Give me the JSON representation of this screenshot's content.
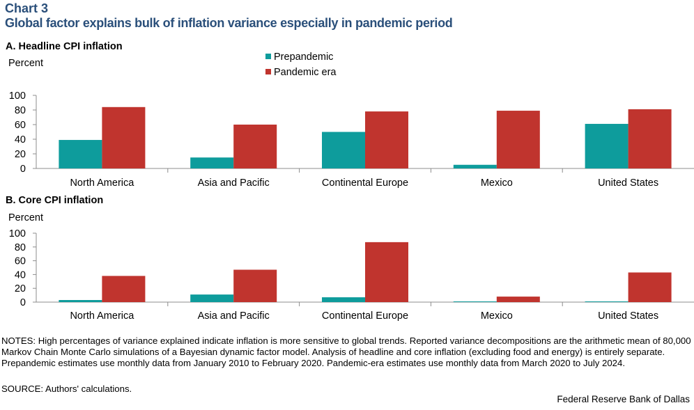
{
  "chart_label": "Chart 3",
  "title": "Global factor explains bulk of inflation variance especially in pandemic period",
  "colors": {
    "prepandemic": "#0e9c9c",
    "pandemic": "#c0342e",
    "title": "#2a4f7a",
    "axis": "#8c8c8c"
  },
  "chart_data": [
    {
      "type": "bar",
      "panel_title": "A. Headline CPI inflation",
      "ylabel": "Percent",
      "ylim": [
        0,
        100
      ],
      "yticks": [
        0,
        20,
        40,
        60,
        80,
        100
      ],
      "categories": [
        "North America",
        "Asia and Pacific",
        "Continental Europe",
        "Mexico",
        "United States"
      ],
      "series": [
        {
          "name": "Prepandemic",
          "values": [
            39,
            15,
            50,
            5,
            61
          ]
        },
        {
          "name": "Pandemic era",
          "values": [
            84,
            60,
            78,
            79,
            81
          ]
        }
      ],
      "legend": "top-center"
    },
    {
      "type": "bar",
      "panel_title": "B. Core CPI inflation",
      "ylabel": "Percent",
      "ylim": [
        0,
        100
      ],
      "yticks": [
        0,
        20,
        40,
        60,
        80,
        100
      ],
      "categories": [
        "North America",
        "Asia and Pacific",
        "Continental Europe",
        "Mexico",
        "United States"
      ],
      "series": [
        {
          "name": "Prepandemic",
          "values": [
            3,
            11,
            7,
            1,
            1
          ]
        },
        {
          "name": "Pandemic era",
          "values": [
            38,
            47,
            87,
            8,
            43
          ]
        }
      ]
    }
  ],
  "notes": "NOTES: High percentages of variance explained indicate inflation is more sensitive to global trends. Reported variance decompositions are the arithmetic mean of 80,000 Markov Chain Monte Carlo simulations of a Bayesian dynamic factor model. Analysis of headline and core inflation (excluding food and energy) is entirely separate. Prepandemic estimates use monthly data from January 2010 to February 2020. Pandemic-era estimates use monthly data from March 2020 to July 2024.",
  "source": "SOURCE: Authors' calculations.",
  "credit": "Federal Reserve Bank of Dallas"
}
